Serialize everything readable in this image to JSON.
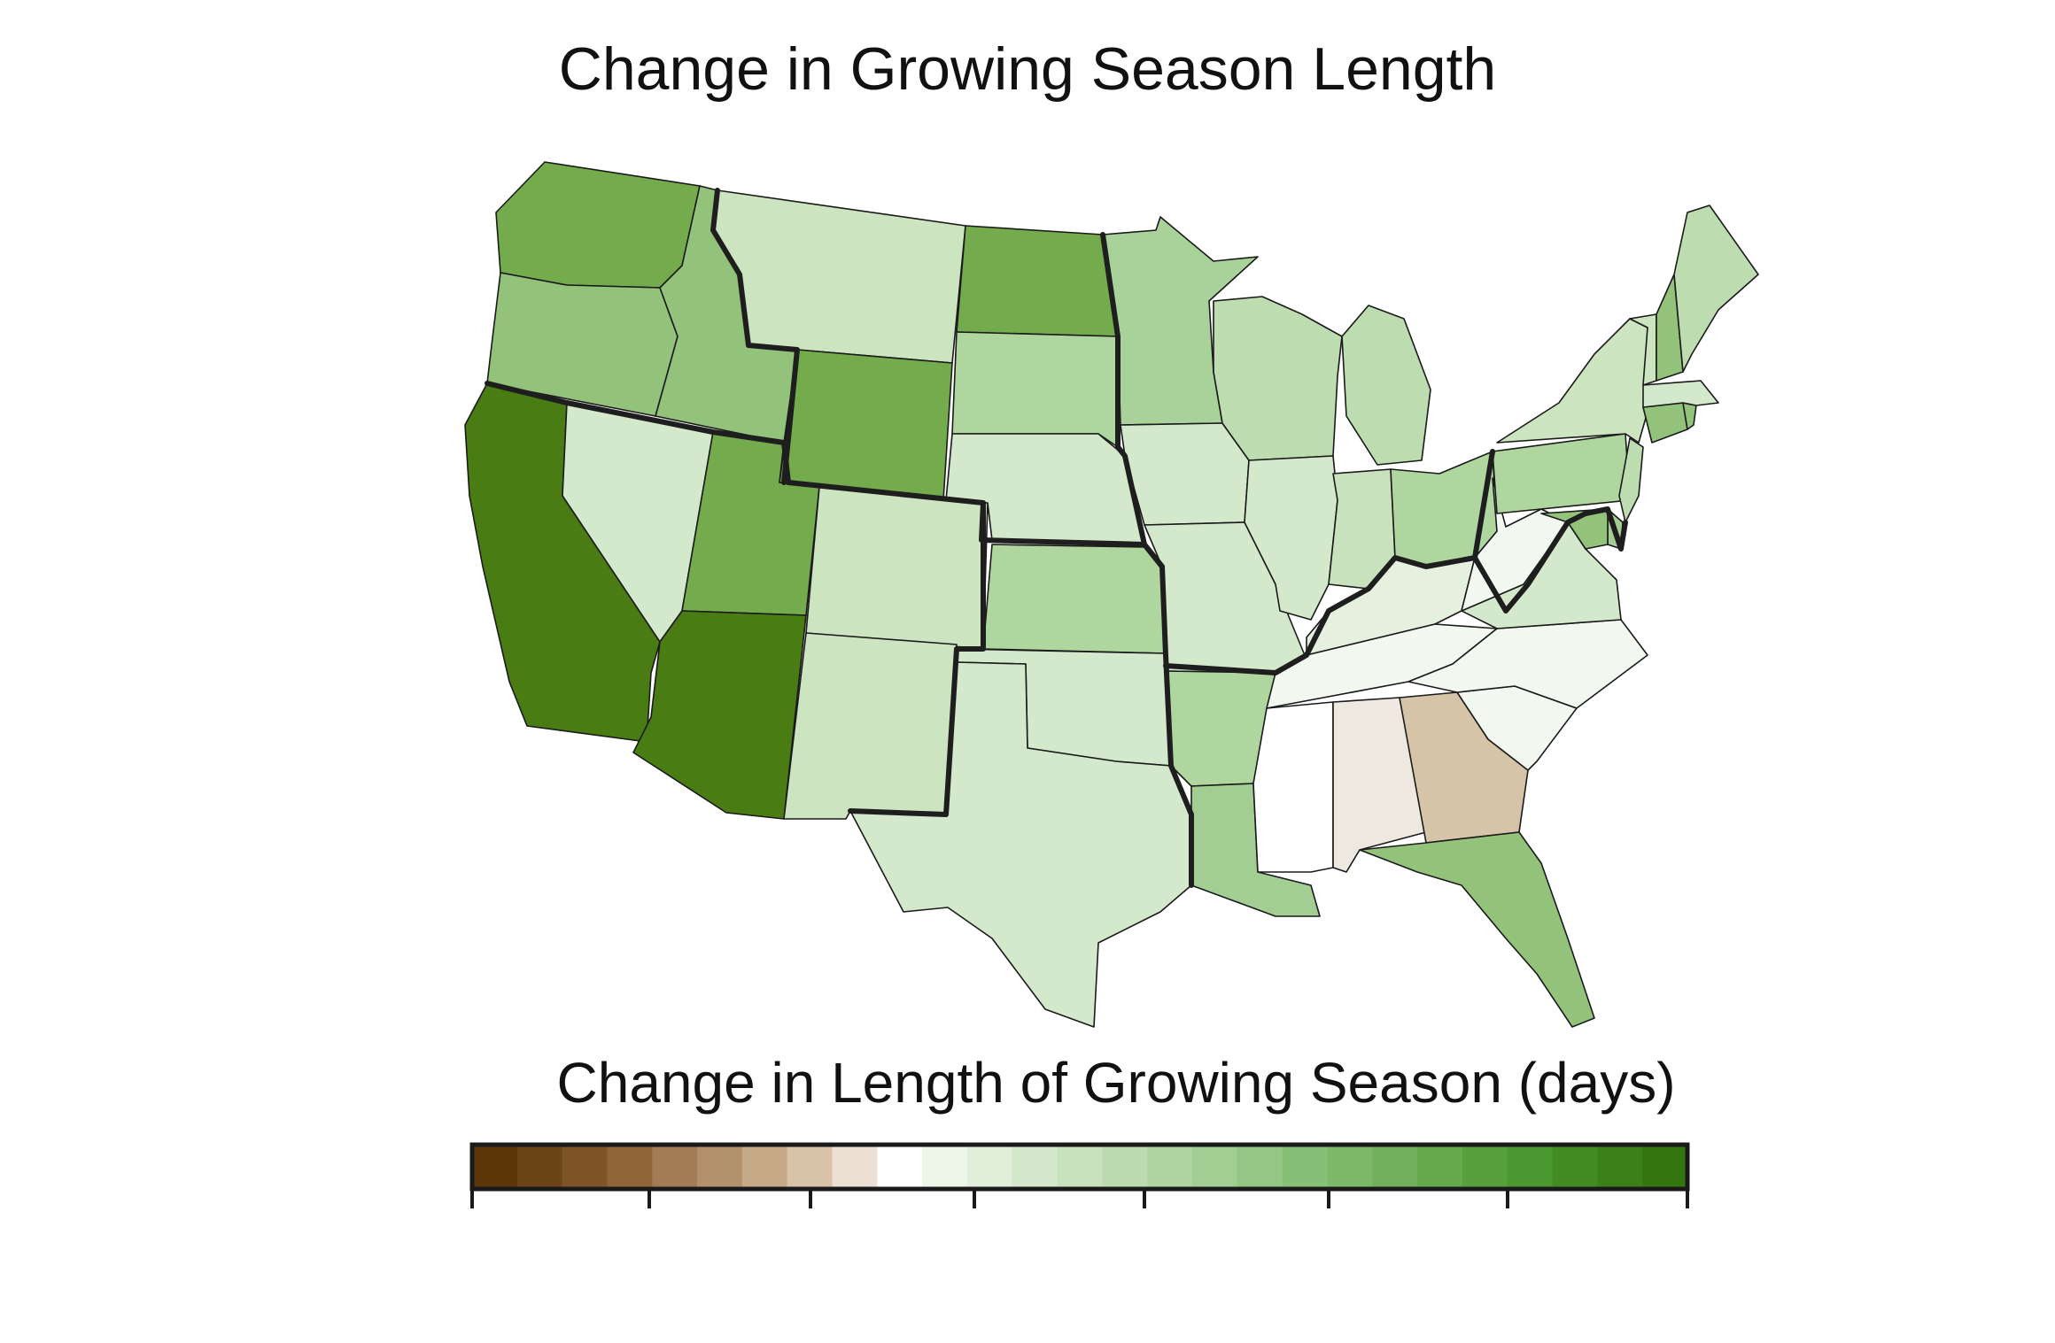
{
  "title": "Change in Growing Season Length",
  "legend": {
    "title": "Change in Length of Growing Season (days)",
    "colors": [
      "#5a3608",
      "#6b4418",
      "#7d5428",
      "#8f6538",
      "#a27c54",
      "#b3916c",
      "#c6aa88",
      "#d8c3a8",
      "#ebe0d3",
      "#ffffff",
      "#edf4e8",
      "#e1eeda",
      "#d5e8cc",
      "#c9e2be",
      "#bcdbb0",
      "#afd4a2",
      "#a2cd93",
      "#95c685",
      "#88bf77",
      "#7cb868",
      "#70b05a",
      "#64a84c",
      "#58a03e",
      "#4c9830",
      "#428c23",
      "#3b8018",
      "#33760e"
    ],
    "tick_count": 8
  },
  "map_data": {
    "type": "choropleth",
    "regions": [
      {
        "id": "WA",
        "color": "#74ab4d"
      },
      {
        "id": "OR",
        "color": "#93c27b"
      },
      {
        "id": "CA",
        "color": "#4a7c14"
      },
      {
        "id": "ID",
        "color": "#93c27b"
      },
      {
        "id": "NV",
        "color": "#d4e8cb"
      },
      {
        "id": "UT",
        "color": "#74ab4d"
      },
      {
        "id": "AZ",
        "color": "#4a7c14"
      },
      {
        "id": "MT",
        "color": "#cce4c0"
      },
      {
        "id": "WY",
        "color": "#74ab4d"
      },
      {
        "id": "CO",
        "color": "#cce4c0"
      },
      {
        "id": "NM",
        "color": "#cce4c0"
      },
      {
        "id": "ND",
        "color": "#74ab4d"
      },
      {
        "id": "SD",
        "color": "#b0d6a0"
      },
      {
        "id": "NE",
        "color": "#d4e8cb"
      },
      {
        "id": "KS",
        "color": "#b0d6a0"
      },
      {
        "id": "OK",
        "color": "#d4e8cb"
      },
      {
        "id": "TX",
        "color": "#d4e8cb"
      },
      {
        "id": "MN",
        "color": "#a9d29a"
      },
      {
        "id": "IA",
        "color": "#d4e8cb"
      },
      {
        "id": "MO",
        "color": "#d4e8cb"
      },
      {
        "id": "AR",
        "color": "#b0d6a0"
      },
      {
        "id": "LA",
        "color": "#a2cd93"
      },
      {
        "id": "WI",
        "color": "#bddcb0"
      },
      {
        "id": "IL",
        "color": "#d4e8cb"
      },
      {
        "id": "MI",
        "color": "#bddcb0"
      },
      {
        "id": "IN",
        "color": "#c9e2be"
      },
      {
        "id": "OH",
        "color": "#b0d6a0"
      },
      {
        "id": "KY",
        "color": "#e6f0df"
      },
      {
        "id": "TN",
        "color": "#f2f7ef"
      },
      {
        "id": "MS",
        "color": "#ffffff"
      },
      {
        "id": "AL",
        "color": "#ede9e0"
      },
      {
        "id": "GA",
        "color": "#d6c4a8"
      },
      {
        "id": "FL",
        "color": "#93c27b"
      },
      {
        "id": "SC",
        "color": "#f2f7ef"
      },
      {
        "id": "NC",
        "color": "#f2f7ef"
      },
      {
        "id": "VA",
        "color": "#d4e8cb"
      },
      {
        "id": "WV",
        "color": "#f2f7ef"
      },
      {
        "id": "PA",
        "color": "#b0d6a0"
      },
      {
        "id": "NY",
        "color": "#cce4c0"
      },
      {
        "id": "NJ",
        "color": "#bddcb0"
      },
      {
        "id": "DE",
        "color": "#a2cd93"
      },
      {
        "id": "MD",
        "color": "#93c27b"
      },
      {
        "id": "CT",
        "color": "#93c27b"
      },
      {
        "id": "RI",
        "color": "#93c27b"
      },
      {
        "id": "MA",
        "color": "#d4e8cb"
      },
      {
        "id": "VT",
        "color": "#cce4c0"
      },
      {
        "id": "NH",
        "color": "#93c27b"
      },
      {
        "id": "ME",
        "color": "#bddcb0"
      }
    ]
  }
}
